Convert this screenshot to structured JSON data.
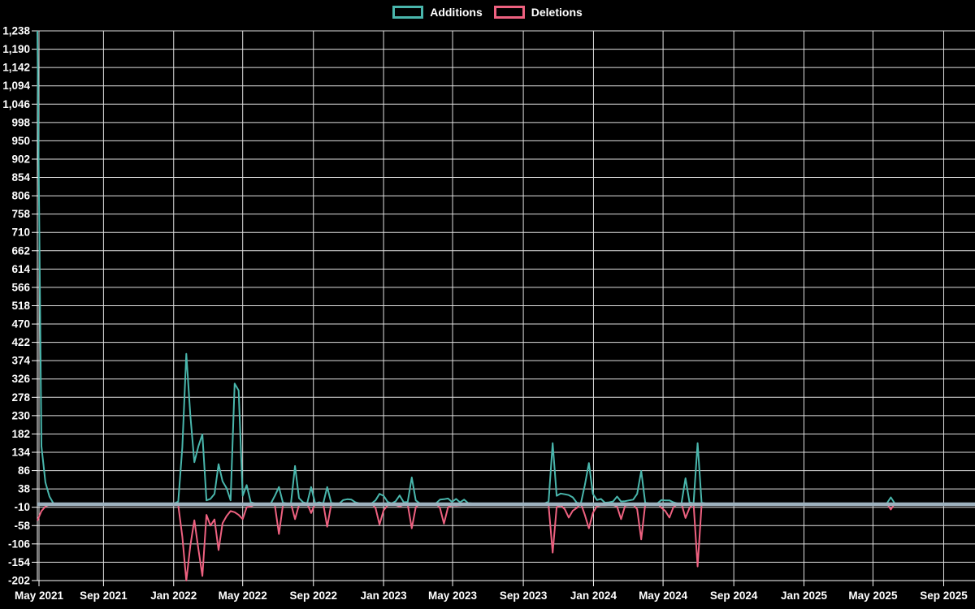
{
  "legend": {
    "items": [
      {
        "label": "Additions",
        "color": "#49b6ac"
      },
      {
        "label": "Deletions",
        "color": "#ee6180"
      }
    ]
  },
  "style": {
    "background": "#000000",
    "grid_color": "#e0e0e0",
    "axis_color": "#ffffff",
    "text_color": "#ffffff",
    "zero_line_color": "#9db1be",
    "additions_color": "#49b6ac",
    "deletions_color": "#ee6180"
  },
  "chart_data": {
    "type": "line",
    "title": "",
    "xlabel": "",
    "ylabel": "",
    "legend_position": "top-center",
    "grid": true,
    "y_axis": {
      "min": -202,
      "max": 1238,
      "step": 48
    },
    "y_tick_labels": [
      "-202",
      "-154",
      "-106",
      "-58",
      "-10",
      "38",
      "86",
      "134",
      "182",
      "230",
      "278",
      "326",
      "374",
      "422",
      "470",
      "518",
      "566",
      "614",
      "662",
      "710",
      "758",
      "806",
      "854",
      "902",
      "950",
      "998",
      "1,046",
      "1,094",
      "1,142",
      "1,190",
      "1,238"
    ],
    "x_ticks": [
      {
        "date": "2021-05-01",
        "label": "May 2021"
      },
      {
        "date": "2021-09-01",
        "label": "Sep 2021"
      },
      {
        "date": "2022-01-01",
        "label": "Jan 2022"
      },
      {
        "date": "2022-05-01",
        "label": "May 2022"
      },
      {
        "date": "2022-09-01",
        "label": "Sep 2022"
      },
      {
        "date": "2023-01-01",
        "label": "Jan 2023"
      },
      {
        "date": "2023-05-01",
        "label": "May 2023"
      },
      {
        "date": "2023-09-01",
        "label": "Sep 2023"
      },
      {
        "date": "2024-01-01",
        "label": "Jan 2024"
      },
      {
        "date": "2024-05-01",
        "label": "May 2024"
      },
      {
        "date": "2024-09-01",
        "label": "Sep 2024"
      },
      {
        "date": "2025-01-01",
        "label": "Jan 2025"
      },
      {
        "date": "2025-05-01",
        "label": "May 2025"
      },
      {
        "date": "2025-09-01",
        "label": "Sep 2025"
      }
    ],
    "series_meta": [
      {
        "name": "Additions",
        "color": "#49b6ac"
      },
      {
        "name": "Deletions",
        "color": "#ee6180"
      }
    ],
    "week_start": "2021-05-09",
    "week_end": "2025-10-26",
    "note": "weekly [week_start_date, additions, deletions]; weeks not listed are [0,0]",
    "weeks": [
      [
        "2021-05-09",
        1238,
        -45
      ],
      [
        "2021-05-16",
        150,
        -20
      ],
      [
        "2021-05-23",
        55,
        -8
      ],
      [
        "2021-05-30",
        18,
        -3
      ],
      [
        "2022-01-09",
        5,
        -5
      ],
      [
        "2022-01-16",
        147,
        -87
      ],
      [
        "2022-01-23",
        392,
        -202
      ],
      [
        "2022-01-30",
        230,
        -110
      ],
      [
        "2022-02-06",
        108,
        -44
      ],
      [
        "2022-02-13",
        150,
        -120
      ],
      [
        "2022-02-20",
        181,
        -190
      ],
      [
        "2022-02-27",
        8,
        -30
      ],
      [
        "2022-03-06",
        12,
        -58
      ],
      [
        "2022-03-13",
        25,
        -42
      ],
      [
        "2022-03-20",
        103,
        -122
      ],
      [
        "2022-03-27",
        58,
        -52
      ],
      [
        "2022-04-03",
        40,
        -33
      ],
      [
        "2022-04-10",
        8,
        -20
      ],
      [
        "2022-04-17",
        314,
        -23
      ],
      [
        "2022-04-24",
        296,
        -30
      ],
      [
        "2022-05-01",
        20,
        -41
      ],
      [
        "2022-05-08",
        48,
        -10
      ],
      [
        "2022-05-15",
        3,
        -8
      ],
      [
        "2022-05-22",
        0,
        -3
      ],
      [
        "2022-06-26",
        20,
        -5
      ],
      [
        "2022-07-03",
        43,
        -80
      ],
      [
        "2022-07-10",
        2,
        -5
      ],
      [
        "2022-07-31",
        98,
        -41
      ],
      [
        "2022-08-07",
        14,
        -4
      ],
      [
        "2022-08-14",
        3,
        -2
      ],
      [
        "2022-08-28",
        43,
        -25
      ],
      [
        "2022-09-11",
        3,
        -3
      ],
      [
        "2022-09-25",
        43,
        -61
      ],
      [
        "2022-10-02",
        1,
        -2
      ],
      [
        "2022-10-23",
        9,
        -4
      ],
      [
        "2022-10-30",
        11,
        -4
      ],
      [
        "2022-11-06",
        10,
        -4
      ],
      [
        "2022-11-13",
        3,
        -2
      ],
      [
        "2022-12-18",
        8,
        -12
      ],
      [
        "2022-12-25",
        25,
        -55
      ],
      [
        "2023-01-01",
        20,
        -18
      ],
      [
        "2023-01-08",
        4,
        -5
      ],
      [
        "2023-01-22",
        6,
        -4
      ],
      [
        "2023-01-29",
        21,
        -8
      ],
      [
        "2023-02-05",
        3,
        -3
      ],
      [
        "2023-02-12",
        4,
        -3
      ],
      [
        "2023-02-19",
        68,
        -65
      ],
      [
        "2023-02-26",
        8,
        -10
      ],
      [
        "2023-04-09",
        10,
        -12
      ],
      [
        "2023-04-16",
        11,
        -53
      ],
      [
        "2023-04-23",
        13,
        -10
      ],
      [
        "2023-04-30",
        4,
        -5
      ],
      [
        "2023-05-07",
        12,
        -6
      ],
      [
        "2023-05-14",
        3,
        -5
      ],
      [
        "2023-05-21",
        10,
        -3
      ],
      [
        "2023-05-28",
        1,
        -2
      ],
      [
        "2023-07-16",
        0,
        -4
      ],
      [
        "2023-10-15",
        5,
        -5
      ],
      [
        "2023-10-22",
        158,
        -129
      ],
      [
        "2023-10-29",
        20,
        -10
      ],
      [
        "2023-11-05",
        26,
        -5
      ],
      [
        "2023-11-12",
        24,
        -15
      ],
      [
        "2023-11-19",
        22,
        -37
      ],
      [
        "2023-11-26",
        16,
        -19
      ],
      [
        "2023-12-03",
        2,
        -12
      ],
      [
        "2023-12-17",
        48,
        -30
      ],
      [
        "2023-12-24",
        106,
        -65
      ],
      [
        "2023-12-31",
        25,
        -25
      ],
      [
        "2024-01-07",
        9,
        -7
      ],
      [
        "2024-01-14",
        12,
        -5
      ],
      [
        "2024-01-21",
        2,
        -5
      ],
      [
        "2024-01-28",
        3,
        -4
      ],
      [
        "2024-02-04",
        5,
        -4
      ],
      [
        "2024-02-11",
        18,
        -8
      ],
      [
        "2024-02-18",
        5,
        -41
      ],
      [
        "2024-02-25",
        6,
        -6
      ],
      [
        "2024-03-03",
        8,
        -4
      ],
      [
        "2024-03-10",
        10,
        -3
      ],
      [
        "2024-03-17",
        25,
        -15
      ],
      [
        "2024-03-24",
        85,
        -94
      ],
      [
        "2024-03-31",
        2,
        -3
      ],
      [
        "2024-04-28",
        9,
        -11
      ],
      [
        "2024-05-05",
        8,
        -20
      ],
      [
        "2024-05-12",
        8,
        -37
      ],
      [
        "2024-05-19",
        3,
        -10
      ],
      [
        "2024-05-26",
        0,
        -2
      ],
      [
        "2024-06-09",
        66,
        -38
      ],
      [
        "2024-06-16",
        3,
        -12
      ],
      [
        "2024-06-30",
        158,
        -165
      ],
      [
        "2024-07-07",
        2,
        -4
      ],
      [
        "2025-06-01",
        16,
        -16
      ]
    ]
  }
}
